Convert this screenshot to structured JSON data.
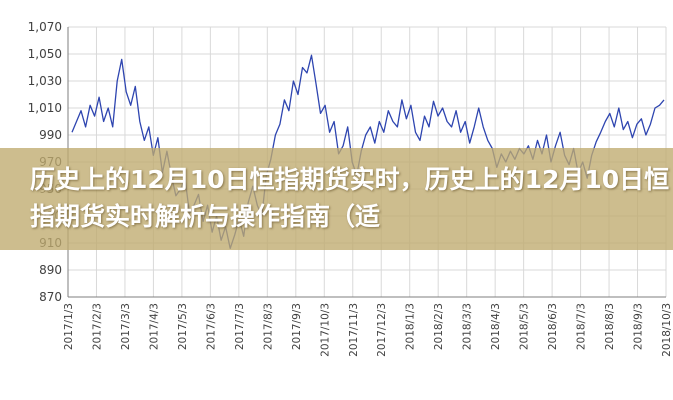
{
  "banner": {
    "title": "历史上的12月10日恒指期货实时，历史上的12月10日恒指期货实时解析与操作指南（适"
  },
  "colors": {
    "line": "#2e45b0",
    "grid": "#d9d9d9",
    "axis": "#7f7f7f",
    "text": "#404040",
    "banner": "#bfaa6e"
  },
  "chart_data": {
    "type": "line",
    "title": "",
    "xlabel": "",
    "ylabel": "",
    "ylim": [
      870,
      1070
    ],
    "yticks": [
      "870",
      "890",
      "910",
      "930",
      "950",
      "970",
      "990",
      "1,010",
      "1,030",
      "1,050",
      "1,070"
    ],
    "grid": true,
    "x_tick_labels": [
      "2017/1/3",
      "2017/2/3",
      "2017/3/3",
      "2017/4/3",
      "2017/5/3",
      "2017/6/3",
      "2017/7/3",
      "2017/8/3",
      "2017/9/3",
      "2017/10/3",
      "2017/11/3",
      "2017/12/3",
      "2018/1/3",
      "2018/2/3",
      "2018/3/3",
      "2018/4/3",
      "2018/5/3",
      "2018/6/3",
      "2018/7/3",
      "2018/8/3",
      "2018/9/3",
      "2018/10/3"
    ],
    "series": [
      {
        "values": [
          992,
          1000,
          1008,
          996,
          1012,
          1004,
          1018,
          1000,
          1010,
          996,
          1030,
          1046,
          1022,
          1012,
          1026,
          1000,
          986,
          996,
          975,
          988,
          962,
          978,
          960,
          945,
          950,
          958,
          932,
          938,
          946,
          926,
          938,
          918,
          930,
          912,
          922,
          906,
          916,
          928,
          915,
          940,
          952,
          938,
          930,
          960,
          972,
          990,
          998,
          1016,
          1008,
          1030,
          1020,
          1040,
          1036,
          1049,
          1028,
          1006,
          1012,
          992,
          1000,
          976,
          982,
          996,
          970,
          960,
          978,
          990,
          996,
          984,
          1000,
          992,
          1008,
          1000,
          996,
          1016,
          1002,
          1012,
          992,
          986,
          1004,
          996,
          1015,
          1004,
          1010,
          1000,
          996,
          1008,
          992,
          1000,
          984,
          996,
          1010,
          996,
          986,
          980,
          966,
          976,
          970,
          978,
          972,
          980,
          976,
          982,
          972,
          986,
          976,
          990,
          970,
          982,
          992,
          975,
          968,
          980,
          962,
          970,
          958,
          975,
          985,
          992,
          1000,
          1006,
          996,
          1010,
          994,
          1000,
          988,
          998,
          1002,
          990,
          998,
          1010,
          1012,
          1016
        ]
      }
    ]
  }
}
